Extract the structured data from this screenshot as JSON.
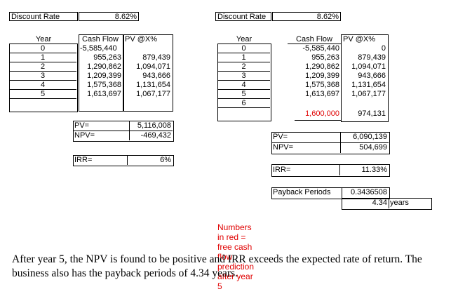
{
  "left": {
    "discount_label": "Discount Rate",
    "discount_value": "8.62%",
    "header_year": "Year",
    "header_cf": "Cash Flow",
    "header_pv": "PV @X%",
    "rows": [
      {
        "year": "0",
        "cf": "-5,585,440",
        "pv": ""
      },
      {
        "year": "1",
        "cf": "955,263",
        "pv": "879,439"
      },
      {
        "year": "2",
        "cf": "1,290,862",
        "pv": "1,094,071"
      },
      {
        "year": "3",
        "cf": "1,209,399",
        "pv": "943,666"
      },
      {
        "year": "4",
        "cf": "1,575,368",
        "pv": "1,131,654"
      },
      {
        "year": "5",
        "cf": "1,613,697",
        "pv": "1,067,177"
      }
    ],
    "pv_label": "PV=",
    "pv_value": "5,116,008",
    "npv_label": "NPV=",
    "npv_value": "-469,432",
    "irr_label": "IRR=",
    "irr_value": "6%"
  },
  "right": {
    "discount_label": "Discount Rate",
    "discount_value": "8.62%",
    "header_year": "Year",
    "header_cf": "Cash Flow",
    "header_pv": "PV @X%",
    "rows": [
      {
        "year": "0",
        "cf": "-5,585,440",
        "pv": "0"
      },
      {
        "year": "1",
        "cf": "955,263",
        "pv": "879,439"
      },
      {
        "year": "2",
        "cf": "1,290,862",
        "pv": "1,094,071"
      },
      {
        "year": "3",
        "cf": "1,209,399",
        "pv": "943,666"
      },
      {
        "year": "4",
        "cf": "1,575,368",
        "pv": "1,131,654"
      },
      {
        "year": "5",
        "cf": "1,613,697",
        "pv": "1,067,177"
      },
      {
        "year": "6",
        "cf": "1,600,000",
        "pv": "974,131"
      }
    ],
    "pv_label": "PV=",
    "pv_value": "6,090,139",
    "npv_label": "NPV=",
    "npv_value": "504,699",
    "irr_label": "IRR=",
    "irr_value": "11.33%",
    "payback_label": "Payback Periods",
    "payback_fraction": "0.3436508",
    "payback_years": "4.34",
    "payback_unit": "years"
  },
  "note": "Numbers in red = free cash flow prediction after year 5",
  "conclusion": "After year 5, the NPV is found to be positive and IRR exceeds the expected rate of return. The business also has the payback periods of 4.34 years.",
  "colors": {
    "prediction": "#e00000"
  }
}
